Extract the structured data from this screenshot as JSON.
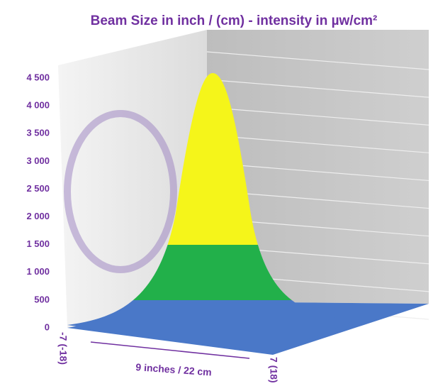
{
  "chart_data": {
    "type": "surface",
    "title": "Beam Size in inch / (cm) - intensity in µw/cm²",
    "xlabel": "9 inches / 22 cm",
    "xticks": [
      {
        "value": -7,
        "label": "-7 (-18)"
      },
      {
        "value": 7,
        "label": "7 (18)"
      }
    ],
    "xlim": [
      -7,
      7
    ],
    "ylim": [
      0,
      4500
    ],
    "yticks": [
      0,
      500,
      {
        "value": 1000,
        "label": "1 000"
      },
      {
        "value": 1500,
        "label": "1 500"
      },
      {
        "value": 2000,
        "label": "2 000"
      },
      {
        "value": 2500,
        "label": "2 500"
      },
      {
        "value": 3000,
        "label": "3 000"
      },
      {
        "value": 3500,
        "label": "3 500"
      },
      {
        "value": 4000,
        "label": "4 000"
      },
      {
        "value": 4500,
        "label": "4 500"
      }
    ],
    "grid": true
  }
}
